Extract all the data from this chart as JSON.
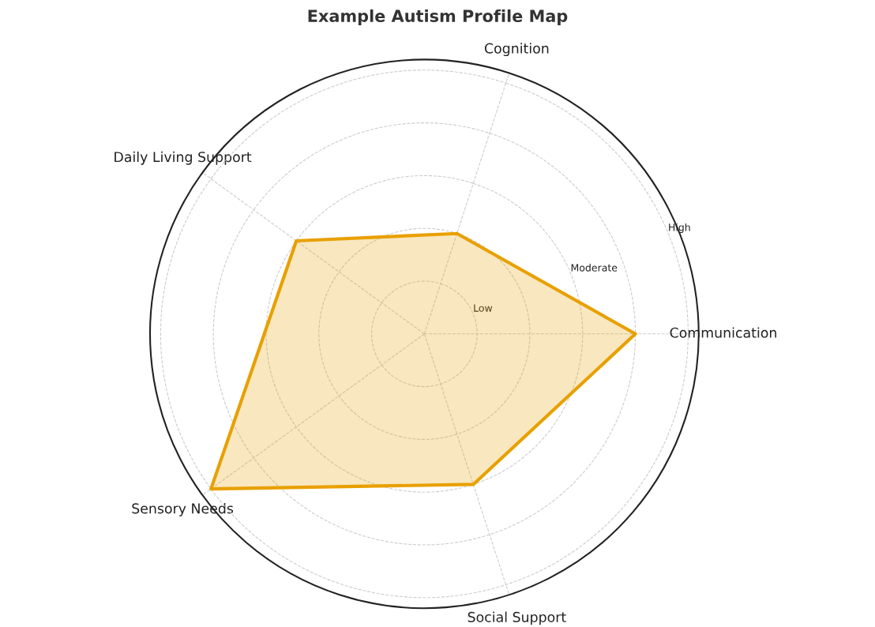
{
  "chart_data": {
    "type": "radar",
    "title": "Example Autism Profile Map",
    "categories": [
      "Cognition",
      "Communication",
      "Social Support",
      "Sensory Needs",
      "Daily Living Support"
    ],
    "series": [
      {
        "color": "#e8a000",
        "values": [
          2,
          4,
          3,
          5,
          3
        ]
      }
    ],
    "ylim": [
      0,
      5.2
    ],
    "yticks": [
      {
        "value": 1,
        "label": "Low"
      },
      {
        "value": 3,
        "label": "Moderate"
      },
      {
        "value": 5,
        "label": "High"
      }
    ],
    "grid": true,
    "line_style": "solid",
    "marker": "none"
  }
}
